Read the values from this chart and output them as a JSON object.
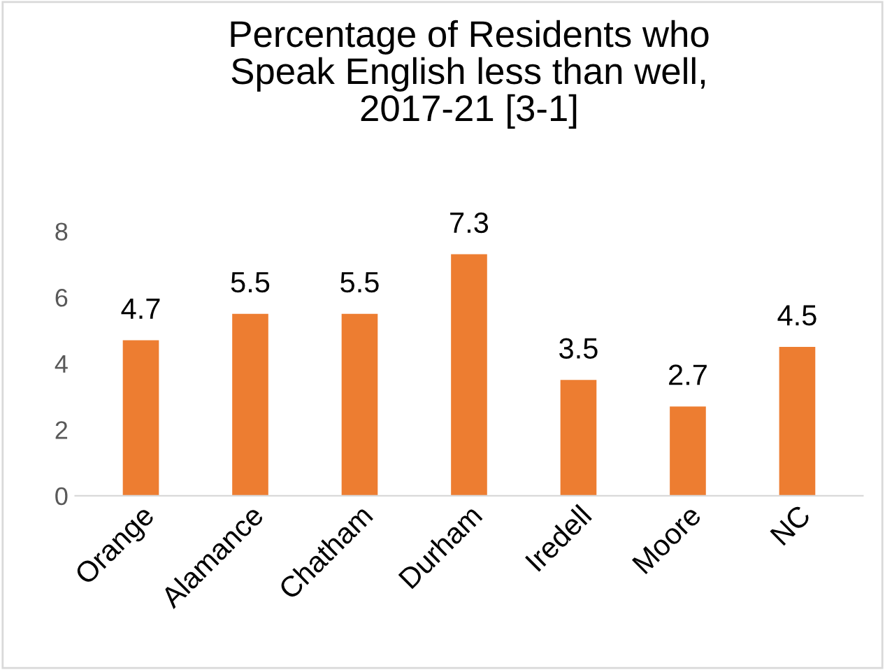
{
  "chart_data": {
    "type": "bar",
    "title": "Percentage of Residents who\nSpeak English less than well,\n2017-21 [3-1]",
    "categories": [
      "Orange",
      "Alamance",
      "Chatham",
      "Durham",
      "Iredell",
      "Moore",
      "NC"
    ],
    "values": [
      4.7,
      5.5,
      5.5,
      7.3,
      3.5,
      2.7,
      4.5
    ],
    "color": "#ed7d31",
    "ylim": [
      0,
      8
    ],
    "yticks": [
      0,
      2,
      4,
      6,
      8
    ],
    "grid": false,
    "data_labels": true
  }
}
